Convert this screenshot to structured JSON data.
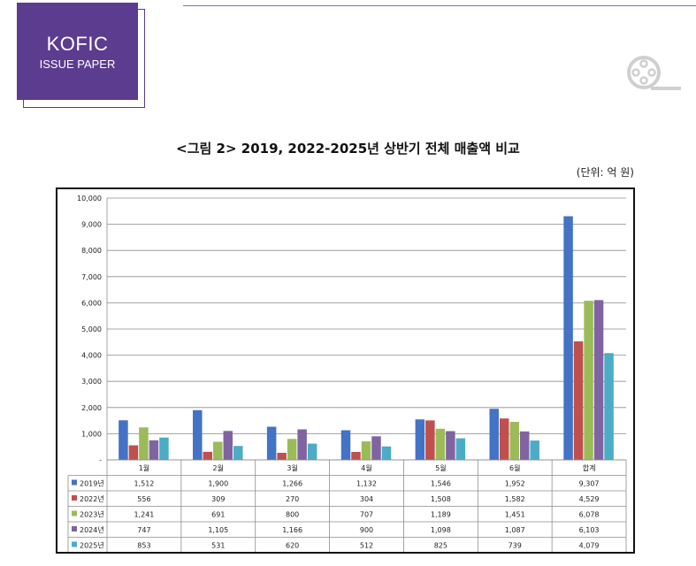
{
  "header": {
    "logo_line1": "KOFIC",
    "logo_line2": "ISSUE PAPER",
    "icon": "film-reel-icon"
  },
  "figure": {
    "title": "<그림 2> 2019, 2022-2025년 상반기 전체 매출액 비교",
    "unit": "(단위: 억 원)"
  },
  "chart_data": {
    "type": "bar",
    "categories": [
      "1월",
      "2월",
      "3월",
      "4월",
      "5월",
      "6월",
      "합계"
    ],
    "series": [
      {
        "name": "2019년",
        "color": "#4472c4",
        "values": [
          1512,
          1900,
          1266,
          1132,
          1546,
          1952,
          9307
        ]
      },
      {
        "name": "2022년",
        "color": "#c0504d",
        "values": [
          556,
          309,
          270,
          304,
          1508,
          1582,
          4529
        ]
      },
      {
        "name": "2023년",
        "color": "#9bbb59",
        "values": [
          1241,
          691,
          800,
          707,
          1189,
          1451,
          6078
        ]
      },
      {
        "name": "2024년",
        "color": "#8064a2",
        "values": [
          747,
          1105,
          1166,
          900,
          1098,
          1087,
          6103
        ]
      },
      {
        "name": "2025년",
        "color": "#4bacc6",
        "values": [
          853,
          531,
          620,
          512,
          825,
          739,
          4079
        ]
      }
    ],
    "y_ticks": [
      "-",
      "1,000",
      "2,000",
      "3,000",
      "4,000",
      "5,000",
      "6,000",
      "7,000",
      "8,000",
      "9,000",
      "10,000"
    ],
    "ylim": [
      0,
      10000
    ],
    "grid": true,
    "table_values": [
      [
        "1,512",
        "1,900",
        "1,266",
        "1,132",
        "1,546",
        "1,952",
        "9,307"
      ],
      [
        "556",
        "309",
        "270",
        "304",
        "1,508",
        "1,582",
        "4,529"
      ],
      [
        "1,241",
        "691",
        "800",
        "707",
        "1,189",
        "1,451",
        "6,078"
      ],
      [
        "747",
        "1,105",
        "1,166",
        "900",
        "1,098",
        "1,087",
        "6,103"
      ],
      [
        "853",
        "531",
        "620",
        "512",
        "825",
        "739",
        "4,079"
      ]
    ]
  }
}
